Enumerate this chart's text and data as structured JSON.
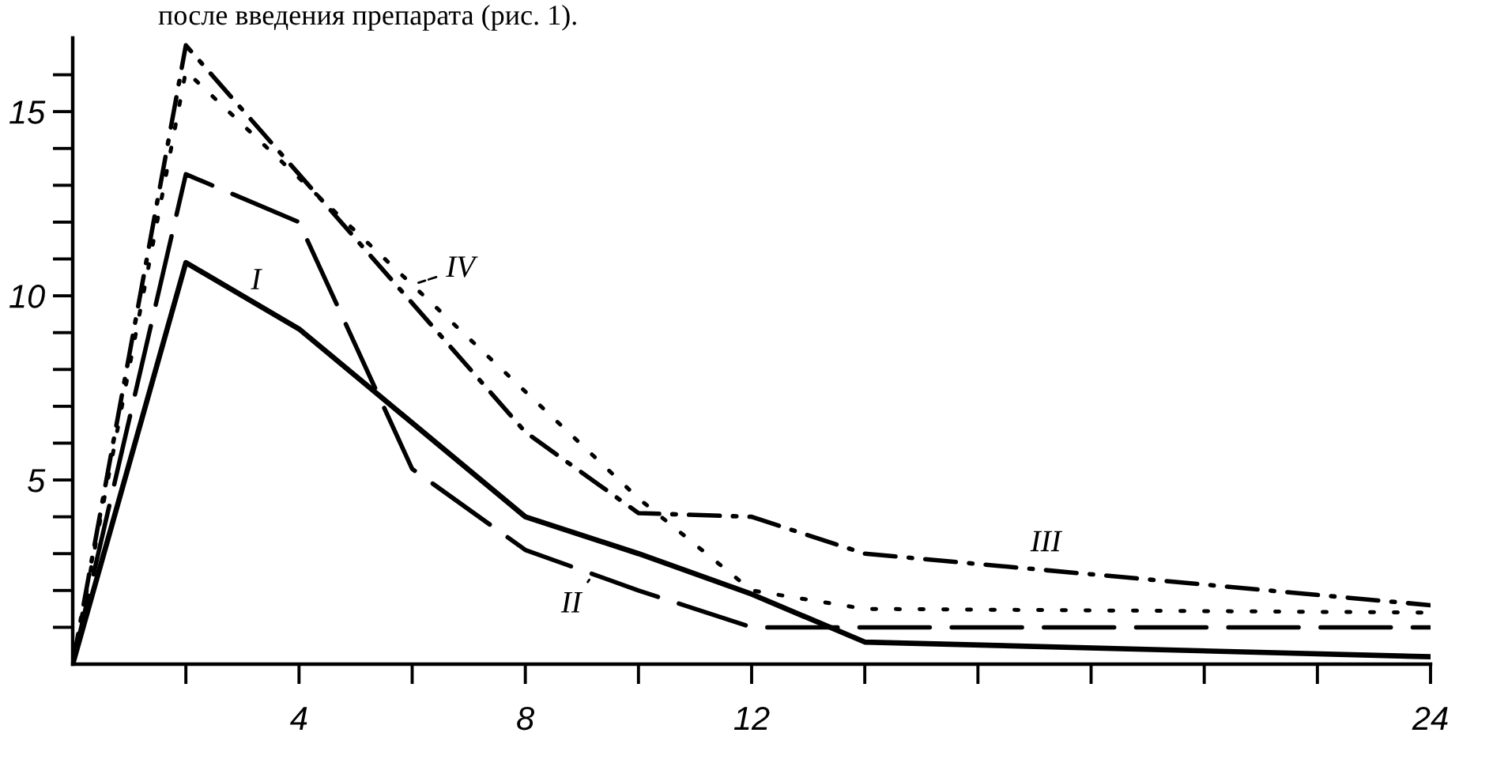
{
  "chart_data": {
    "type": "line",
    "annotations": [
      "после введения препарата (рис. 1)."
    ],
    "xlim": [
      0,
      24
    ],
    "xticks": [
      {
        "value": 2,
        "label": null
      },
      4,
      {
        "value": 6,
        "label": null
      },
      8,
      {
        "value": 10,
        "label": null
      },
      12,
      {
        "value": 14,
        "label": null
      },
      {
        "value": 16,
        "label": null
      },
      {
        "value": 18,
        "label": null
      },
      {
        "value": 20,
        "label": null
      },
      {
        "value": 22,
        "label": null
      },
      24
    ],
    "ylim": [
      0,
      17
    ],
    "yticks": [
      {
        "value": 1,
        "label": null
      },
      {
        "value": 2,
        "label": null
      },
      {
        "value": 3,
        "label": null
      },
      {
        "value": 4,
        "label": null
      },
      5,
      {
        "value": 6,
        "label": null
      },
      {
        "value": 7,
        "label": null
      },
      {
        "value": 8,
        "label": null
      },
      {
        "value": 9,
        "label": null
      },
      10,
      {
        "value": 11,
        "label": null
      },
      {
        "value": 12,
        "label": null
      },
      {
        "value": 13,
        "label": null
      },
      {
        "value": 14,
        "label": null
      },
      15,
      {
        "value": 16,
        "label": null
      }
    ],
    "series": [
      {
        "name": "I",
        "color": "#000000",
        "line_style": "solid",
        "x": [
          0,
          2,
          4,
          8,
          10,
          12,
          14,
          24
        ],
        "values": [
          0,
          10.9,
          9.1,
          4.0,
          3.0,
          1.9,
          0.6,
          0.2
        ]
      },
      {
        "name": "II",
        "color": "#000000",
        "line_style": "dashed",
        "x": [
          0,
          2,
          4,
          6,
          8,
          10,
          12,
          24
        ],
        "values": [
          0,
          13.3,
          12.0,
          5.3,
          3.1,
          2.0,
          1.0,
          1.0
        ]
      },
      {
        "name": "III",
        "color": "#000000",
        "line_style": "dashdot",
        "x": [
          0,
          2,
          8,
          10,
          12,
          14,
          24
        ],
        "values": [
          0,
          16.8,
          6.3,
          4.1,
          4.0,
          3.0,
          1.6
        ]
      },
      {
        "name": "IV",
        "color": "#000000",
        "line_style": "dotted",
        "x": [
          0,
          2,
          10,
          12,
          14,
          24
        ],
        "values": [
          0,
          16.1,
          4.5,
          2.0,
          1.5,
          1.4
        ]
      }
    ]
  }
}
